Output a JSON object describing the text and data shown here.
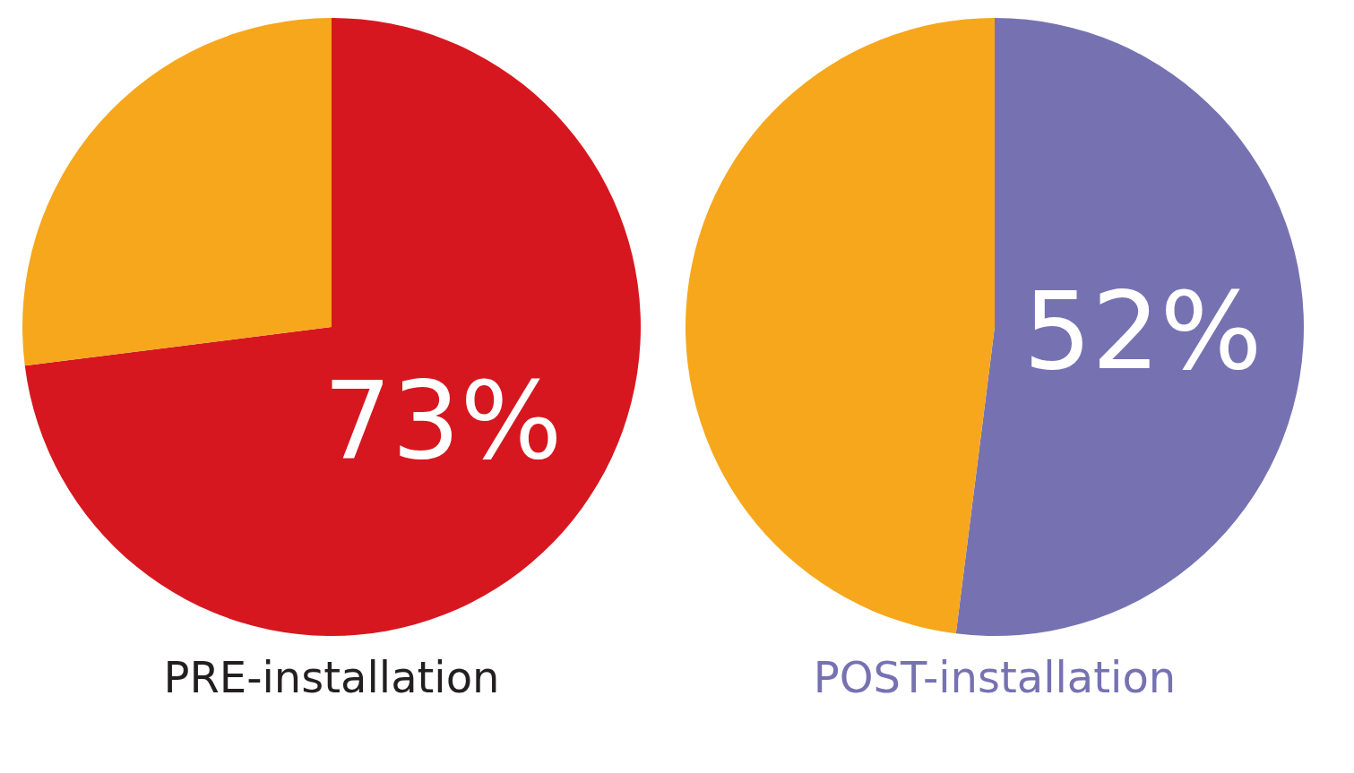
{
  "chart_data": [
    {
      "type": "pie",
      "title": "PRE-installation",
      "categories": [
        null,
        null
      ],
      "values": [
        73,
        27
      ],
      "colors": [
        "#d7171f",
        "#f6a71c"
      ],
      "value_labels": [
        "73%",
        null
      ]
    },
    {
      "type": "pie",
      "title": "POST-installation",
      "categories": [
        null,
        null
      ],
      "values": [
        52,
        48
      ],
      "colors": [
        "#7672b2",
        "#f6a71c"
      ],
      "value_labels": [
        "52%",
        null
      ]
    }
  ]
}
